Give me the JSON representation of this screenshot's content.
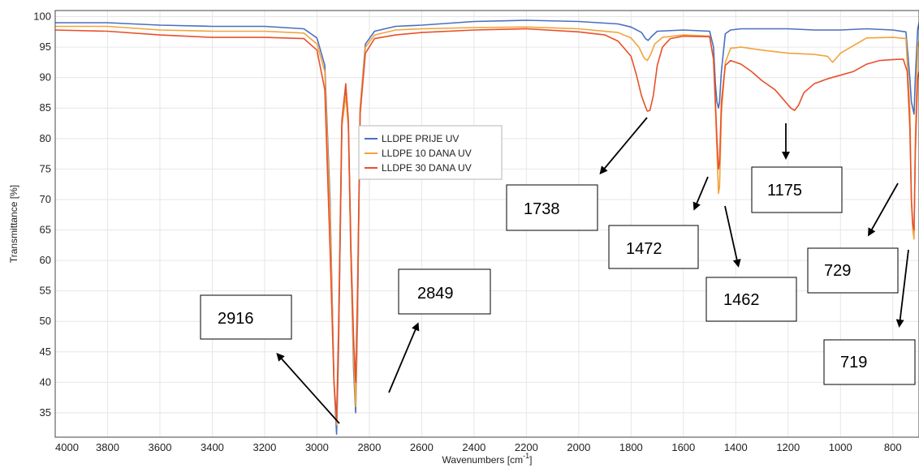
{
  "chart_data": {
    "type": "line",
    "title": "",
    "xlabel": "Wavenumbers [cm",
    "xlabel_sup": "-1",
    "xlabel_end": "]",
    "ylabel": "Transmittance [%]",
    "xlim": [
      4000,
      700
    ],
    "ylim": [
      31,
      101
    ],
    "x_ticks": [
      4000,
      3800,
      3600,
      3400,
      3200,
      3000,
      2800,
      2600,
      2400,
      2200,
      2000,
      1800,
      1600,
      1400,
      1200,
      1000,
      800
    ],
    "y_ticks": [
      35,
      40,
      45,
      50,
      55,
      60,
      65,
      70,
      75,
      80,
      85,
      90,
      95,
      100
    ],
    "grid": true,
    "legend_position": "center",
    "series": [
      {
        "name": "LLDPE PRIJE UV",
        "color": "#4a6fbf",
        "points": [
          [
            4000,
            99.0
          ],
          [
            3800,
            99.0
          ],
          [
            3600,
            98.6
          ],
          [
            3400,
            98.4
          ],
          [
            3200,
            98.4
          ],
          [
            3050,
            98.0
          ],
          [
            3000,
            96.5
          ],
          [
            2970,
            92.0
          ],
          [
            2950,
            70.0
          ],
          [
            2935,
            40.0
          ],
          [
            2925,
            31.5
          ],
          [
            2918,
            44.0
          ],
          [
            2905,
            82.0
          ],
          [
            2890,
            87.5
          ],
          [
            2880,
            82.0
          ],
          [
            2870,
            60.0
          ],
          [
            2860,
            42.0
          ],
          [
            2852,
            35.0
          ],
          [
            2845,
            50.0
          ],
          [
            2835,
            85.0
          ],
          [
            2815,
            95.5
          ],
          [
            2780,
            97.6
          ],
          [
            2700,
            98.4
          ],
          [
            2600,
            98.6
          ],
          [
            2400,
            99.2
          ],
          [
            2200,
            99.4
          ],
          [
            2000,
            99.2
          ],
          [
            1850,
            98.8
          ],
          [
            1800,
            98.3
          ],
          [
            1760,
            97.4
          ],
          [
            1745,
            96.4
          ],
          [
            1735,
            96.1
          ],
          [
            1720,
            96.8
          ],
          [
            1700,
            97.6
          ],
          [
            1600,
            97.8
          ],
          [
            1500,
            97.6
          ],
          [
            1485,
            95.0
          ],
          [
            1478,
            89.0
          ],
          [
            1472,
            86.0
          ],
          [
            1466,
            85.0
          ],
          [
            1462,
            86.0
          ],
          [
            1455,
            91.0
          ],
          [
            1440,
            97.2
          ],
          [
            1420,
            97.8
          ],
          [
            1380,
            98.0
          ],
          [
            1300,
            98.0
          ],
          [
            1200,
            98.0
          ],
          [
            1100,
            97.8
          ],
          [
            1000,
            97.8
          ],
          [
            900,
            98.0
          ],
          [
            800,
            97.8
          ],
          [
            750,
            97.5
          ],
          [
            735,
            90.0
          ],
          [
            729,
            86.0
          ],
          [
            724,
            85.0
          ],
          [
            719,
            84.0
          ],
          [
            714,
            90.0
          ],
          [
            705,
            98.0
          ],
          [
            700,
            99.0
          ]
        ]
      },
      {
        "name": "LLDPE 10 DANA UV",
        "color": "#f2a33a",
        "points": [
          [
            4000,
            98.4
          ],
          [
            3800,
            98.4
          ],
          [
            3600,
            97.8
          ],
          [
            3400,
            97.6
          ],
          [
            3200,
            97.6
          ],
          [
            3050,
            97.3
          ],
          [
            3000,
            95.5
          ],
          [
            2970,
            91.0
          ],
          [
            2950,
            68.0
          ],
          [
            2935,
            40.0
          ],
          [
            2925,
            33.0
          ],
          [
            2918,
            46.0
          ],
          [
            2905,
            82.0
          ],
          [
            2890,
            87.0
          ],
          [
            2880,
            82.0
          ],
          [
            2870,
            60.0
          ],
          [
            2860,
            44.0
          ],
          [
            2852,
            36.0
          ],
          [
            2845,
            52.0
          ],
          [
            2835,
            85.0
          ],
          [
            2815,
            95.0
          ],
          [
            2780,
            97.0
          ],
          [
            2700,
            97.8
          ],
          [
            2600,
            98.0
          ],
          [
            2400,
            98.2
          ],
          [
            2200,
            98.3
          ],
          [
            2000,
            98.0
          ],
          [
            1850,
            97.4
          ],
          [
            1800,
            96.5
          ],
          [
            1770,
            95.0
          ],
          [
            1750,
            93.2
          ],
          [
            1738,
            92.8
          ],
          [
            1725,
            93.8
          ],
          [
            1710,
            95.5
          ],
          [
            1680,
            96.6
          ],
          [
            1600,
            97.0
          ],
          [
            1500,
            96.8
          ],
          [
            1485,
            93.0
          ],
          [
            1478,
            85.0
          ],
          [
            1472,
            78.0
          ],
          [
            1466,
            71.0
          ],
          [
            1462,
            72.0
          ],
          [
            1455,
            84.0
          ],
          [
            1440,
            92.5
          ],
          [
            1420,
            94.8
          ],
          [
            1380,
            95.0
          ],
          [
            1300,
            94.5
          ],
          [
            1200,
            94.0
          ],
          [
            1100,
            93.8
          ],
          [
            1050,
            93.5
          ],
          [
            1030,
            92.5
          ],
          [
            1000,
            94.0
          ],
          [
            900,
            96.5
          ],
          [
            800,
            96.6
          ],
          [
            750,
            96.4
          ],
          [
            735,
            85.0
          ],
          [
            729,
            70.0
          ],
          [
            724,
            65.0
          ],
          [
            719,
            63.5
          ],
          [
            714,
            80.0
          ],
          [
            705,
            95.0
          ],
          [
            700,
            96.0
          ]
        ]
      },
      {
        "name": "LLDPE 30 DANA UV",
        "color": "#e8502a",
        "points": [
          [
            4000,
            97.8
          ],
          [
            3800,
            97.6
          ],
          [
            3600,
            97.0
          ],
          [
            3400,
            96.6
          ],
          [
            3200,
            96.6
          ],
          [
            3050,
            96.4
          ],
          [
            3000,
            94.5
          ],
          [
            2970,
            88.0
          ],
          [
            2950,
            62.0
          ],
          [
            2935,
            40.0
          ],
          [
            2925,
            34.0
          ],
          [
            2918,
            48.0
          ],
          [
            2905,
            83.0
          ],
          [
            2890,
            89.0
          ],
          [
            2880,
            83.0
          ],
          [
            2870,
            62.0
          ],
          [
            2860,
            47.0
          ],
          [
            2852,
            40.0
          ],
          [
            2845,
            55.0
          ],
          [
            2835,
            84.0
          ],
          [
            2815,
            94.0
          ],
          [
            2780,
            96.4
          ],
          [
            2700,
            97.0
          ],
          [
            2600,
            97.4
          ],
          [
            2400,
            97.8
          ],
          [
            2200,
            98.0
          ],
          [
            2000,
            97.5
          ],
          [
            1900,
            97.0
          ],
          [
            1850,
            96.0
          ],
          [
            1800,
            93.5
          ],
          [
            1780,
            90.5
          ],
          [
            1760,
            87.0
          ],
          [
            1745,
            85.2
          ],
          [
            1738,
            84.5
          ],
          [
            1728,
            84.6
          ],
          [
            1715,
            87.0
          ],
          [
            1700,
            92.0
          ],
          [
            1680,
            95.0
          ],
          [
            1650,
            96.4
          ],
          [
            1600,
            96.8
          ],
          [
            1500,
            96.7
          ],
          [
            1485,
            93.0
          ],
          [
            1478,
            86.0
          ],
          [
            1472,
            80.0
          ],
          [
            1466,
            75.0
          ],
          [
            1462,
            76.0
          ],
          [
            1455,
            86.0
          ],
          [
            1440,
            92.0
          ],
          [
            1420,
            92.8
          ],
          [
            1380,
            92.2
          ],
          [
            1340,
            91.0
          ],
          [
            1300,
            89.5
          ],
          [
            1250,
            88.0
          ],
          [
            1210,
            86.0
          ],
          [
            1190,
            85.0
          ],
          [
            1175,
            84.6
          ],
          [
            1160,
            85.5
          ],
          [
            1140,
            87.5
          ],
          [
            1100,
            89.0
          ],
          [
            1050,
            89.8
          ],
          [
            1000,
            90.4
          ],
          [
            950,
            91.0
          ],
          [
            900,
            92.2
          ],
          [
            850,
            92.8
          ],
          [
            780,
            93.0
          ],
          [
            760,
            93.0
          ],
          [
            745,
            91.0
          ],
          [
            735,
            82.0
          ],
          [
            729,
            70.0
          ],
          [
            724,
            66.0
          ],
          [
            719,
            65.0
          ],
          [
            714,
            78.0
          ],
          [
            705,
            90.0
          ],
          [
            700,
            91.0
          ]
        ]
      }
    ],
    "annotations": [
      {
        "label": "2916"
      },
      {
        "label": "2849"
      },
      {
        "label": "1738"
      },
      {
        "label": "1472"
      },
      {
        "label": "1462"
      },
      {
        "label": "1175"
      },
      {
        "label": "729"
      },
      {
        "label": "719"
      }
    ]
  }
}
